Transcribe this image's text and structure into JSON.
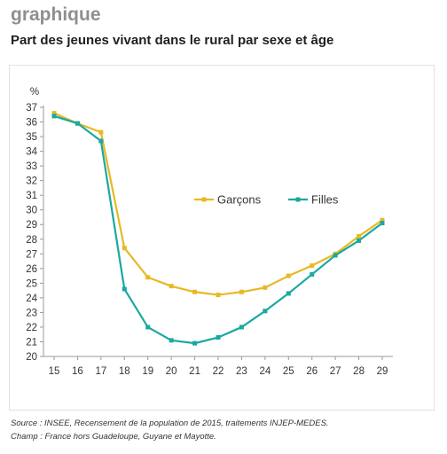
{
  "heading": "graphique",
  "subtitle": "Part des jeunes vivant dans le rural par sexe et âge",
  "source": "Source : INSEE, Recensement de la population de 2015, traitements INJEP-MEDES.",
  "scope": "Champ : France hors Guadeloupe, Guyane et Mayotte.",
  "colors": {
    "garcons": "#e8b923",
    "filles": "#1aa8a2",
    "axis": "#999999",
    "text": "#333333"
  },
  "chart_data": {
    "type": "line",
    "title": "Part des jeunes vivant dans le rural par sexe et âge",
    "ylabel": "%",
    "xlabel": "",
    "x": [
      "15",
      "16",
      "17",
      "18",
      "19",
      "20",
      "21",
      "22",
      "23",
      "24",
      "25",
      "26",
      "27",
      "28",
      "29"
    ],
    "ylim": [
      20,
      37
    ],
    "yticks": [
      "20",
      "21",
      "22",
      "23",
      "24",
      "25",
      "26",
      "27",
      "28",
      "29",
      "30",
      "31",
      "32",
      "33",
      "34",
      "35",
      "36",
      "37"
    ],
    "grid": false,
    "legend_position": "center-right",
    "series": [
      {
        "name": "Garçons",
        "color": "#e8b923",
        "values": [
          36.6,
          35.9,
          35.3,
          27.4,
          25.4,
          24.8,
          24.4,
          24.2,
          24.4,
          24.7,
          25.5,
          26.2,
          27.0,
          28.2,
          29.3
        ]
      },
      {
        "name": "Filles",
        "color": "#1aa8a2",
        "values": [
          36.4,
          35.9,
          34.7,
          24.6,
          22.0,
          21.1,
          20.9,
          21.3,
          22.0,
          23.1,
          24.3,
          25.6,
          26.9,
          27.9,
          29.1
        ]
      }
    ]
  }
}
